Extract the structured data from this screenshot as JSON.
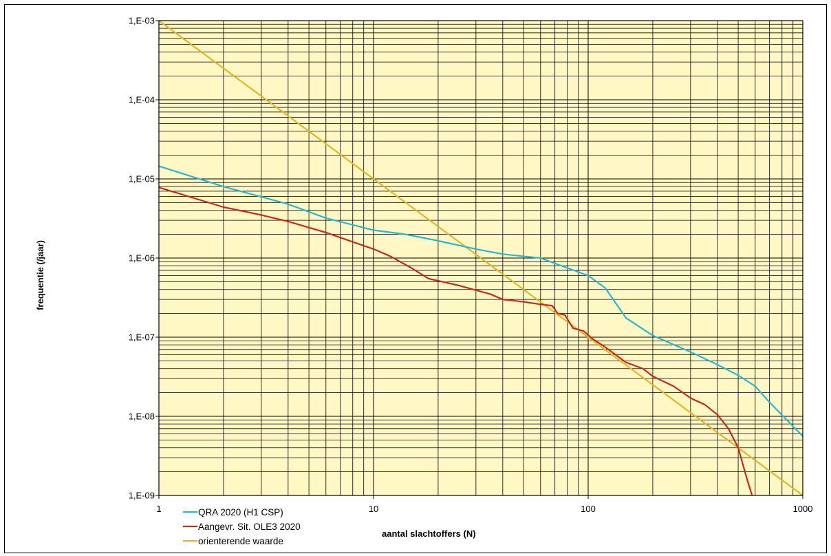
{
  "chart_data": {
    "type": "line",
    "xlabel": "aantal slachtoffers (N)",
    "ylabel": "frequentie (/jaar)",
    "x_scale": "log",
    "y_scale": "log",
    "xlim": [
      1,
      1000
    ],
    "ylim": [
      1e-09,
      0.001
    ],
    "grid": true,
    "plot_background": "#FFF8C4",
    "x_ticks": [
      {
        "value": 1,
        "label": "1"
      },
      {
        "value": 10,
        "label": "10"
      },
      {
        "value": 100,
        "label": "100"
      },
      {
        "value": 1000,
        "label": "1000"
      }
    ],
    "y_ticks": [
      {
        "value": 0.001,
        "label": "1,E-03"
      },
      {
        "value": 0.0001,
        "label": "1,E-04"
      },
      {
        "value": 1e-05,
        "label": "1,E-05"
      },
      {
        "value": 1e-06,
        "label": "1,E-06"
      },
      {
        "value": 1e-07,
        "label": "1,E-07"
      },
      {
        "value": 1e-08,
        "label": "1,E-08"
      },
      {
        "value": 1e-09,
        "label": "1,E-09"
      }
    ],
    "legend_position": "bottom-left",
    "series": [
      {
        "name": "QRA 2020 (H1 CSP)",
        "color": "#29B6D4",
        "points": [
          [
            1,
            1.45e-05
          ],
          [
            2,
            8e-06
          ],
          [
            4,
            4.8e-06
          ],
          [
            6,
            3.2e-06
          ],
          [
            10,
            2.25e-06
          ],
          [
            14,
            2e-06
          ],
          [
            20,
            1.65e-06
          ],
          [
            30,
            1.3e-06
          ],
          [
            40,
            1.12e-06
          ],
          [
            60,
            1e-06
          ],
          [
            80,
            7.5e-07
          ],
          [
            100,
            6e-07
          ],
          [
            120,
            4.2e-07
          ],
          [
            150,
            1.75e-07
          ],
          [
            200,
            1.05e-07
          ],
          [
            300,
            6.5e-08
          ],
          [
            400,
            4.5e-08
          ],
          [
            500,
            3.3e-08
          ],
          [
            600,
            2.4e-08
          ],
          [
            700,
            1.5e-08
          ],
          [
            1000,
            5.6e-09
          ]
        ]
      },
      {
        "name": "Aangevr. Sit. OLE3 2020",
        "color": "#C8281E",
        "points": [
          [
            1,
            7.8e-06
          ],
          [
            2,
            4.4e-06
          ],
          [
            3,
            3.5e-06
          ],
          [
            4,
            2.9e-06
          ],
          [
            6,
            2.1e-06
          ],
          [
            8,
            1.6e-06
          ],
          [
            10,
            1.3e-06
          ],
          [
            12,
            1.05e-06
          ],
          [
            15,
            7.5e-07
          ],
          [
            18,
            5.5e-07
          ],
          [
            25,
            4.5e-07
          ],
          [
            35,
            3.5e-07
          ],
          [
            40,
            3e-07
          ],
          [
            50,
            2.8e-07
          ],
          [
            60,
            2.6e-07
          ],
          [
            68,
            2.5e-07
          ],
          [
            72,
            2e-07
          ],
          [
            78,
            1.9e-07
          ],
          [
            85,
            1.3e-07
          ],
          [
            95,
            1.2e-07
          ],
          [
            105,
            9.5e-08
          ],
          [
            120,
            7.5e-08
          ],
          [
            150,
            4.8e-08
          ],
          [
            180,
            4e-08
          ],
          [
            200,
            3.2e-08
          ],
          [
            250,
            2.4e-08
          ],
          [
            300,
            1.7e-08
          ],
          [
            350,
            1.4e-08
          ],
          [
            400,
            1.05e-08
          ],
          [
            450,
            7e-09
          ],
          [
            500,
            4e-09
          ],
          [
            550,
            1.6e-09
          ],
          [
            580,
            1e-09
          ]
        ]
      },
      {
        "name": "orienterende waarde",
        "color": "#E5B422",
        "points": [
          [
            1,
            0.001
          ],
          [
            1000,
            1e-09
          ]
        ]
      }
    ]
  }
}
